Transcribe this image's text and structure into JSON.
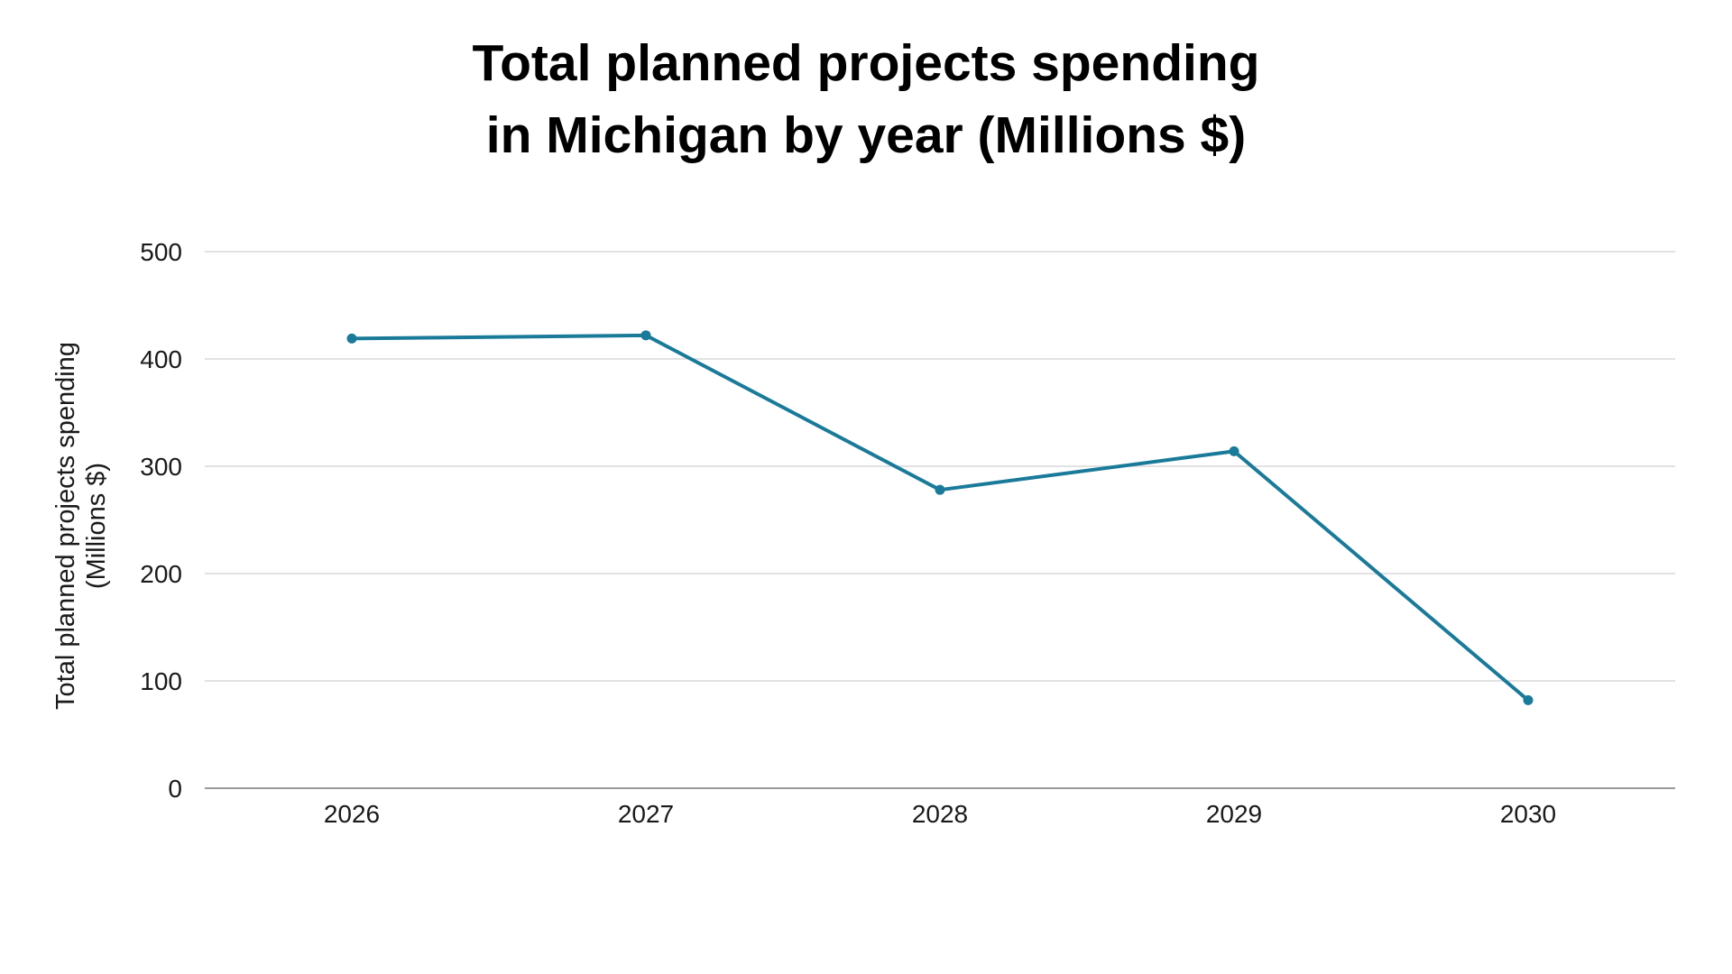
{
  "chart_data": {
    "type": "line",
    "title": [
      "Total planned projects spending",
      "in Michigan by year (Millions $)"
    ],
    "xlabel": "",
    "ylabel": [
      "Total planned projects spending",
      "(Millions $)"
    ],
    "categories": [
      "2026",
      "2027",
      "2028",
      "2029",
      "2030"
    ],
    "series": [
      {
        "name": "Total planned projects spending",
        "values": [
          419,
          422,
          278,
          314,
          82
        ],
        "color": "#1a7a99"
      }
    ],
    "ylim": [
      0,
      500
    ],
    "yticks": [
      0,
      100,
      200,
      300,
      400,
      500
    ],
    "grid": true,
    "legend": "none"
  }
}
